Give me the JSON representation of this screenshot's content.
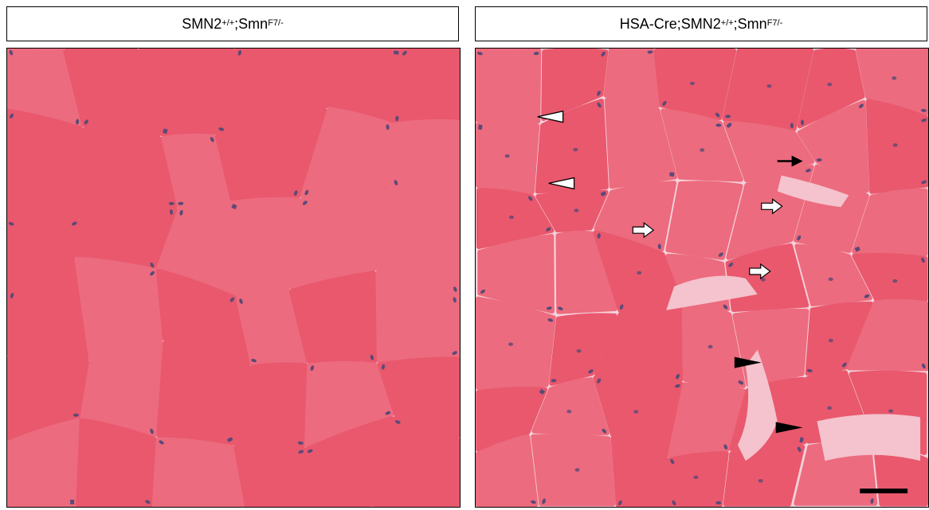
{
  "panels": [
    {
      "label": {
        "main": "SMN2",
        "sup1": "+/+",
        "mid": ";Smn",
        "sup2": "F7/-"
      },
      "image_description": "H&E stained cross-section of skeletal muscle, polygonal pink myofibers with peripheral nuclei"
    },
    {
      "label": {
        "main": "HSA-Cre;SMN2",
        "sup1": "+/+",
        "mid": ";Smn",
        "sup2": "F7/-"
      },
      "image_description": "H&E stained cross-section of skeletal muscle with centrally located nuclei, infiltrates and widened interstitium",
      "markers": {
        "open_arrowheads": 2,
        "solid_arrow": 1,
        "open_arrows": 3,
        "solid_arrowheads": 2,
        "scale_bar": true
      }
    }
  ],
  "colors": {
    "fiber": "#e9586d",
    "fiber_light": "#ec6b7e",
    "membrane": "#f6d2da",
    "interstitium": "#f4c3cd",
    "nucleus": "#5a4a78",
    "marker": "#000000"
  }
}
